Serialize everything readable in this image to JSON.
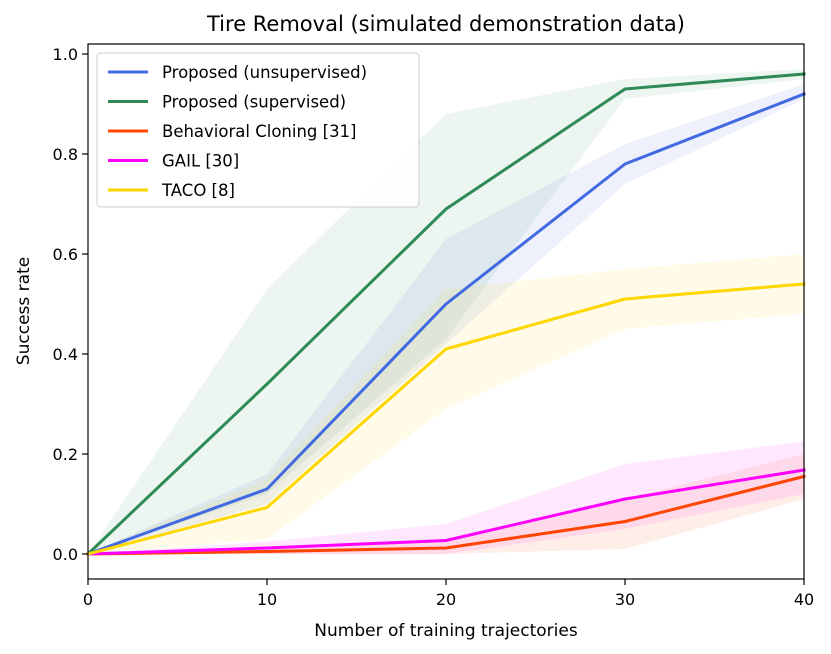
{
  "chart_data": {
    "type": "line",
    "title": "Tire Removal (simulated demonstration data)",
    "xlabel": "Number of training trajectories",
    "ylabel": "Success rate",
    "xlim": [
      0,
      40
    ],
    "ylim": [
      -0.05,
      1.02
    ],
    "xticks": [
      0,
      10,
      20,
      30,
      40
    ],
    "yticks": [
      0.0,
      0.2,
      0.4,
      0.6,
      0.8,
      1.0
    ],
    "x": [
      0,
      10,
      20,
      30,
      40
    ],
    "legend_position": "top-left",
    "grid": false,
    "series": [
      {
        "name": "Proposed (unsupervised)",
        "color": "#4169e1",
        "values": [
          0.0,
          0.13,
          0.5,
          0.78,
          0.92
        ],
        "lower": [
          0.0,
          0.1,
          0.42,
          0.74,
          0.91
        ],
        "upper": [
          0.0,
          0.16,
          0.63,
          0.82,
          0.94
        ]
      },
      {
        "name": "Proposed (supervised)",
        "color": "#2e8b57",
        "values": [
          0.0,
          0.34,
          0.69,
          0.93,
          0.96
        ],
        "lower": [
          0.0,
          0.12,
          0.43,
          0.91,
          0.95
        ],
        "upper": [
          0.0,
          0.53,
          0.88,
          0.95,
          0.97
        ]
      },
      {
        "name": "Behavioral Cloning [31]",
        "color": "#ff4500",
        "values": [
          0.0,
          0.005,
          0.012,
          0.065,
          0.155
        ],
        "lower": [
          0.0,
          0.0,
          0.0,
          0.01,
          0.11
        ],
        "upper": [
          0.0,
          0.01,
          0.03,
          0.11,
          0.2
        ]
      },
      {
        "name": "GAIL [30]",
        "color": "#ff00ff",
        "values": [
          0.0,
          0.012,
          0.027,
          0.11,
          0.168
        ],
        "lower": [
          0.0,
          0.0,
          0.0,
          0.05,
          0.12
        ],
        "upper": [
          0.0,
          0.025,
          0.06,
          0.18,
          0.225
        ]
      },
      {
        "name": "TACO [8]",
        "color": "#ffd700",
        "values": [
          0.0,
          0.093,
          0.41,
          0.51,
          0.54
        ],
        "lower": [
          0.0,
          0.03,
          0.29,
          0.45,
          0.48
        ],
        "upper": [
          0.0,
          0.15,
          0.53,
          0.57,
          0.6
        ]
      }
    ]
  }
}
